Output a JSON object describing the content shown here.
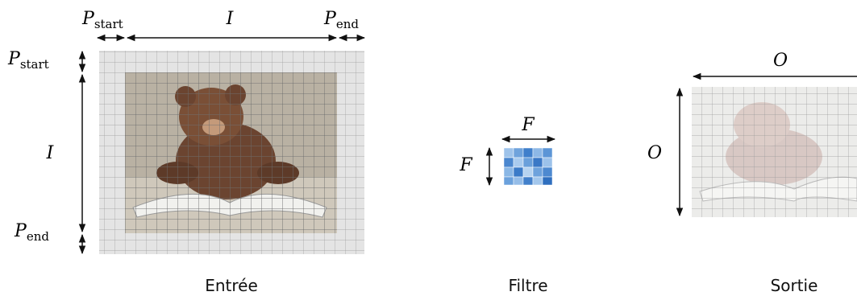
{
  "input": {
    "padding_start_top": {
      "symbol": "P",
      "subscript": "start"
    },
    "size_top": "I",
    "padding_end_top": {
      "symbol": "P",
      "subscript": "end"
    },
    "padding_start_left": {
      "symbol": "P",
      "subscript": "start"
    },
    "size_left": "I",
    "padding_end_left": {
      "symbol": "P",
      "subscript": "end"
    },
    "caption": "Entrée"
  },
  "filter": {
    "size_top": "F",
    "size_left": "F",
    "caption": "Filtre"
  },
  "output": {
    "size_top": "O",
    "size_left": "O",
    "caption": "Sortie"
  }
}
